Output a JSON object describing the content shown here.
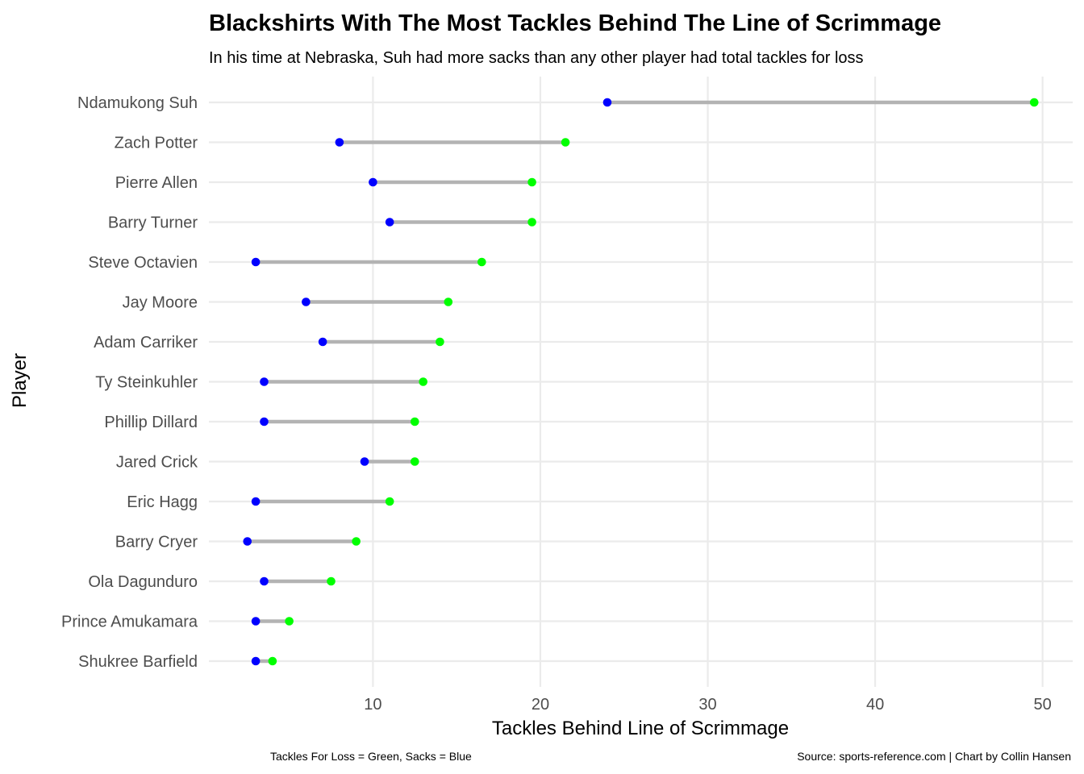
{
  "chart_data": {
    "type": "dumbbell",
    "title": "Blackshirts With The Most Tackles Behind The Line of Scrimmage",
    "subtitle": "In his time at Nebraska, Suh had more sacks than any other player had total tackles for loss",
    "xlabel": "Tackles Behind Line of Scrimmage",
    "ylabel": "Player",
    "caption_left": "Tackles For Loss = Green, Sacks = Blue",
    "caption_right": "Source: sports-reference.com | Chart by Collin Hansen",
    "xlim": [
      0.2,
      51.8
    ],
    "x_ticks": [
      10,
      20,
      30,
      40,
      50
    ],
    "grid": true,
    "categories": [
      "Ndamukong Suh",
      "Zach Potter",
      "Pierre Allen",
      "Barry Turner",
      "Steve Octavien",
      "Jay Moore",
      "Adam Carriker",
      "Ty Steinkuhler",
      "Phillip Dillard",
      "Jared Crick",
      "Eric Hagg",
      "Barry Cryer",
      "Ola Dagunduro",
      "Prince Amukamara",
      "Shukree Barfield"
    ],
    "series": [
      {
        "name": "Sacks",
        "color": "#0000ff",
        "values": [
          24,
          8,
          10,
          11,
          3,
          6,
          7,
          3.5,
          3.5,
          9.5,
          3,
          2.5,
          3.5,
          3,
          3
        ]
      },
      {
        "name": "Tackles For Loss",
        "color": "#00ff00",
        "values": [
          49.5,
          21.5,
          19.5,
          19.5,
          16.5,
          14.5,
          14,
          13,
          12.5,
          12.5,
          11,
          9,
          7.5,
          5,
          4
        ]
      }
    ],
    "segment_color": "#b3b3b3"
  }
}
